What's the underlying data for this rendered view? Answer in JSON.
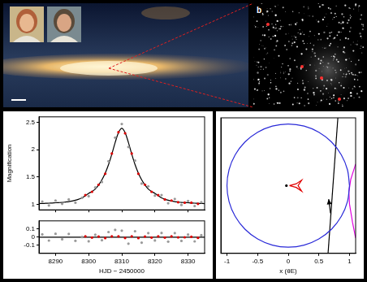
{
  "star_field": {
    "label": "b"
  },
  "chart_data": [
    {
      "type": "scatter",
      "y_label": "Magnification",
      "xlim": [
        8285,
        8335
      ],
      "xticks": [
        8290,
        8300,
        8310,
        8320,
        8330
      ],
      "ylim": [
        0.9,
        2.6
      ],
      "yticks": [
        1,
        1.5,
        2,
        2.5
      ],
      "tick_labels": "y",
      "grid": false,
      "series": [
        {
          "color": "#9a9a9a",
          "marker": "circle",
          "x": [
            8286,
            8288,
            8290,
            8292,
            8294,
            8296,
            8298,
            8300,
            8302,
            8304,
            8306,
            8308,
            8310,
            8312,
            8314,
            8316,
            8318,
            8320,
            8322,
            8324,
            8326,
            8328,
            8330,
            8332,
            8334
          ],
          "values": [
            1.05,
            0.98,
            1.07,
            1.01,
            1.09,
            1.03,
            1.12,
            1.15,
            1.31,
            1.41,
            1.79,
            2.22,
            2.47,
            2.05,
            1.8,
            1.38,
            1.33,
            1.16,
            1.17,
            1.02,
            1.1,
            0.99,
            1.06,
            0.97,
            1.04
          ]
        },
        {
          "color": "#dd0000",
          "marker": "circle",
          "x": [
            8299,
            8301,
            8303,
            8305,
            8307,
            8309,
            8311,
            8313,
            8315,
            8317,
            8319,
            8321,
            8323,
            8325,
            8327,
            8329,
            8331,
            8333
          ],
          "values": [
            1.17,
            1.23,
            1.36,
            1.56,
            1.93,
            2.32,
            2.3,
            1.93,
            1.56,
            1.36,
            1.23,
            1.17,
            1.09,
            1.07,
            1.04,
            1.03,
            1.03,
            1.01
          ]
        },
        {
          "type": "line",
          "color": "#000000",
          "line_style": "solid",
          "x": [
            8285,
            8286,
            8287,
            8288,
            8289,
            8290,
            8291,
            8292,
            8293,
            8294,
            8295,
            8296,
            8297,
            8298,
            8299,
            8300,
            8301,
            8302,
            8303,
            8304,
            8305,
            8306,
            8307,
            8308,
            8309,
            8310,
            8311,
            8312,
            8313,
            8314,
            8315,
            8316,
            8317,
            8318,
            8319,
            8320,
            8321,
            8322,
            8323,
            8324,
            8325,
            8326,
            8327,
            8328,
            8329,
            8330,
            8331,
            8332,
            8333,
            8334,
            8335
          ],
          "values": [
            1.014,
            1.016,
            1.019,
            1.022,
            1.025,
            1.029,
            1.032,
            1.036,
            1.043,
            1.05,
            1.06,
            1.075,
            1.095,
            1.119,
            1.16,
            1.201,
            1.235,
            1.28,
            1.353,
            1.448,
            1.571,
            1.727,
            1.92,
            2.13,
            2.31,
            2.39,
            2.31,
            2.13,
            1.92,
            1.727,
            1.571,
            1.448,
            1.353,
            1.28,
            1.235,
            1.201,
            1.16,
            1.119,
            1.095,
            1.075,
            1.06,
            1.05,
            1.043,
            1.036,
            1.032,
            1.029,
            1.025,
            1.022,
            1.019,
            1.016,
            1.014
          ]
        }
      ]
    },
    {
      "type": "scatter",
      "x_label": "HJD − 2450000",
      "xlim": [
        8285,
        8335
      ],
      "xticks": [
        8290,
        8300,
        8310,
        8320,
        8330
      ],
      "ylim": [
        -0.2,
        0.2
      ],
      "yticks": [
        -0.1,
        0,
        0.1
      ],
      "grid": false,
      "series": [
        {
          "color": "#9a9a9a",
          "marker": "circle",
          "x": [
            8286,
            8288,
            8290,
            8292,
            8294,
            8296,
            8298,
            8300,
            8302,
            8304,
            8306,
            8308,
            8310,
            8312,
            8314,
            8316,
            8318,
            8320,
            8322,
            8324,
            8326,
            8328,
            8330,
            8332,
            8334
          ],
          "values": [
            0.034,
            -0.042,
            0.041,
            -0.026,
            0.04,
            -0.045,
            0.001,
            -0.051,
            0.03,
            -0.038,
            0.063,
            0.09,
            0.08,
            -0.08,
            0.073,
            -0.068,
            0.05,
            -0.041,
            0.051,
            -0.055,
            0.05,
            -0.046,
            0.031,
            -0.052,
            0.024
          ]
        },
        {
          "color": "#dd0000",
          "marker": "circle",
          "x": [
            8299,
            8301,
            8303,
            8305,
            8307,
            8309,
            8311,
            8313,
            8315,
            8317,
            8319,
            8321,
            8323,
            8325,
            8327,
            8329,
            8331,
            8333
          ],
          "values": [
            0.01,
            -0.005,
            0.007,
            -0.011,
            0.01,
            0.01,
            -0.01,
            0.01,
            -0.011,
            0.007,
            -0.005,
            0.01,
            -0.005,
            0.01,
            -0.003,
            -0.002,
            0.005,
            -0.009
          ]
        },
        {
          "type": "line",
          "color": "#000000",
          "line_style": "solid",
          "x": [
            8285,
            8335
          ],
          "values": [
            0,
            0
          ]
        }
      ]
    },
    {
      "type": "line",
      "x_label": "x (θE)",
      "xlim": [
        -1.1,
        1.1
      ],
      "xticks": [
        -1,
        -0.5,
        0,
        0.5,
        1
      ],
      "ylim": [
        -1.1,
        1.1
      ],
      "tick_labels": "x",
      "grid": false,
      "series": [
        {
          "color": "#2a2ad8",
          "line_style": "solid",
          "x": [
            1,
            0.966,
            0.866,
            0.707,
            0.5,
            0.259,
            0,
            -0.259,
            -0.5,
            -0.707,
            -0.866,
            -0.966,
            -1,
            -0.966,
            -0.866,
            -0.707,
            -0.5,
            -0.259,
            0,
            0.259,
            0.5,
            0.707,
            0.866,
            0.966,
            1
          ],
          "values": [
            0,
            0.259,
            0.5,
            0.707,
            0.866,
            0.966,
            1,
            0.966,
            0.866,
            0.707,
            0.5,
            0.259,
            0,
            -0.259,
            -0.5,
            -0.707,
            -0.866,
            -0.966,
            -1,
            -0.966,
            -0.866,
            -0.707,
            -0.5,
            -0.259,
            0
          ]
        },
        {
          "color": "#e00000",
          "line_style": "solid",
          "x": [
            0.02,
            0.13,
            0.22,
            0.16,
            0.22,
            0.13,
            0.02
          ],
          "values": [
            0,
            0.03,
            0.09,
            0,
            -0.09,
            -0.03,
            0
          ]
        },
        {
          "type": "scatter",
          "color": "#000000",
          "marker": "circle",
          "x": [
            -0.03
          ],
          "values": [
            0
          ]
        },
        {
          "color": "#000000",
          "line_style": "solid",
          "x": [
            0.81,
            0.65
          ],
          "values": [
            1.1,
            -1.1
          ]
        },
        {
          "color": "#e000e0",
          "line_style": "solid",
          "x": [
            1.1,
            1.02,
            0.99,
            1.0,
            1.05,
            1.1
          ],
          "values": [
            0.35,
            0.1,
            -0.1,
            -0.3,
            -0.6,
            -0.85
          ]
        },
        {
          "color": "#000000",
          "line_style": "solid",
          "marker": "arrow",
          "x": [
            0.69,
            0.66
          ],
          "values": [
            -0.45,
            -0.22
          ]
        }
      ]
    }
  ]
}
